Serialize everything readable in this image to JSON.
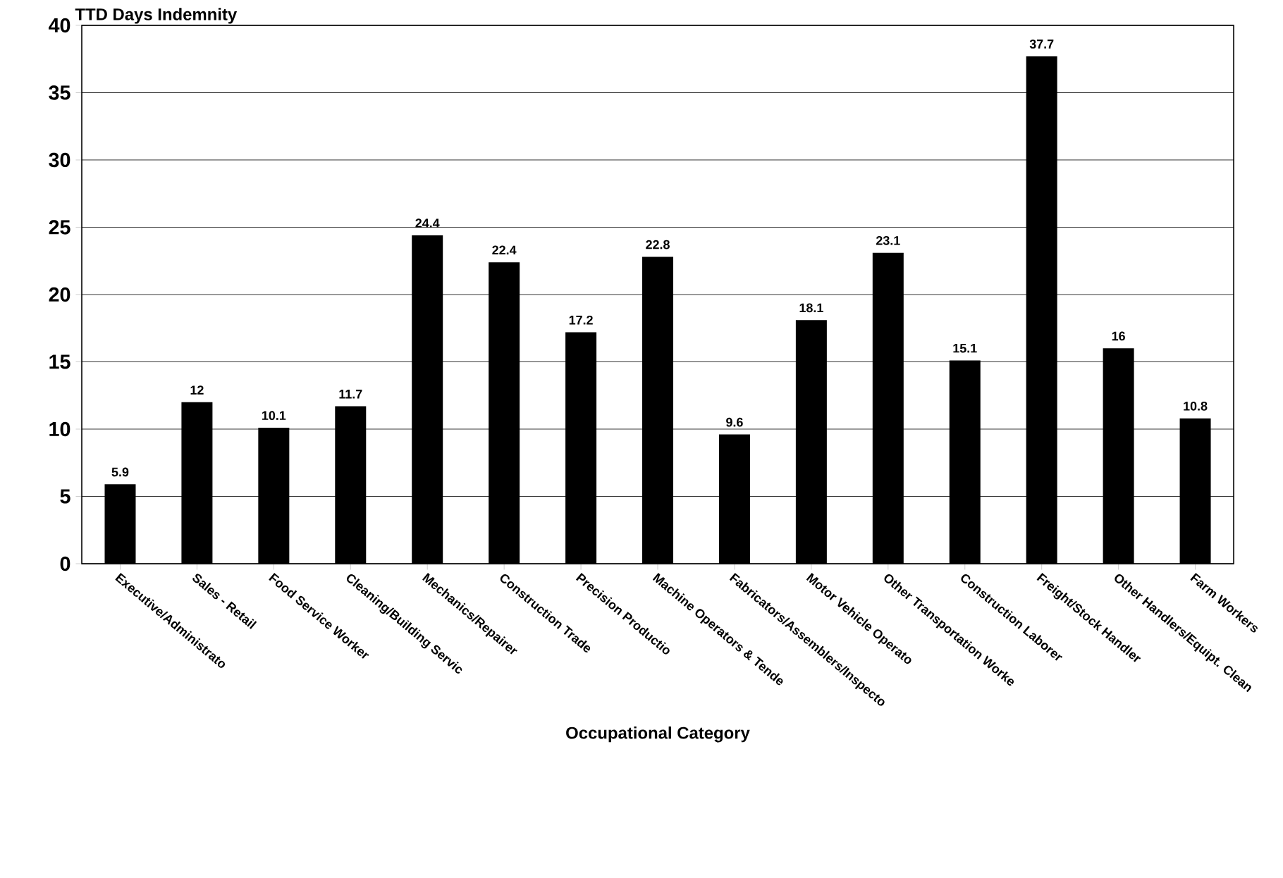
{
  "chart_data": {
    "type": "bar",
    "ylabel": "TTD Days Indemnity",
    "xlabel": "Occupational Category",
    "categories": [
      "Executive/Administrato",
      "Sales - Retail",
      "Food Service Worker",
      "Cleaning/Building Servic",
      "Mechanics/Repairer",
      "Construction Trade",
      "Precision Productio",
      "Machine Operators & Tende",
      "Fabricators/Assemblers/Inspecto",
      "Motor Vehicle Operato",
      "Other Transportation Worke",
      "Construction Laborer",
      "Freight/Stock Handler",
      "Other Handlers/Equipt. Clean",
      "Farm Workers"
    ],
    "values": [
      5.9,
      12,
      10.1,
      11.7,
      24.4,
      22.4,
      17.2,
      22.8,
      9.6,
      18.1,
      23.1,
      15.1,
      37.7,
      16,
      10.8
    ],
    "color": "#000000",
    "ylim": [
      0,
      40
    ],
    "yticks": [
      0,
      5,
      10,
      15,
      20,
      25,
      30,
      35,
      40
    ],
    "grid": "y",
    "data_labels": true
  }
}
